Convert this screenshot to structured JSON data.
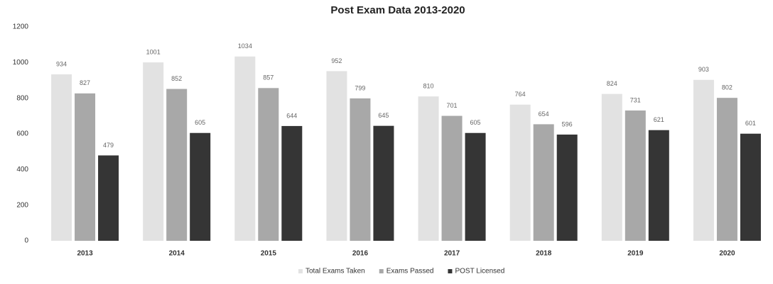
{
  "chart_data": {
    "type": "bar",
    "title": "Post Exam Data 2013-2020",
    "categories": [
      "2013",
      "2014",
      "2015",
      "2016",
      "2017",
      "2018",
      "2019",
      "2020"
    ],
    "series": [
      {
        "name": "Total Exams Taken",
        "color": "#e2e2e2",
        "values": [
          934,
          1001,
          1034,
          952,
          810,
          764,
          824,
          903
        ]
      },
      {
        "name": "Exams Passed",
        "color": "#a8a8a8",
        "values": [
          827,
          852,
          857,
          799,
          701,
          654,
          731,
          802
        ]
      },
      {
        "name": "POST Licensed",
        "color": "#353535",
        "values": [
          479,
          605,
          644,
          645,
          605,
          596,
          621,
          601
        ]
      }
    ],
    "ylim": [
      0,
      1200
    ],
    "yticks": [
      0,
      200,
      400,
      600,
      800,
      1000,
      1200
    ],
    "grid": false,
    "legend": "bottom"
  }
}
